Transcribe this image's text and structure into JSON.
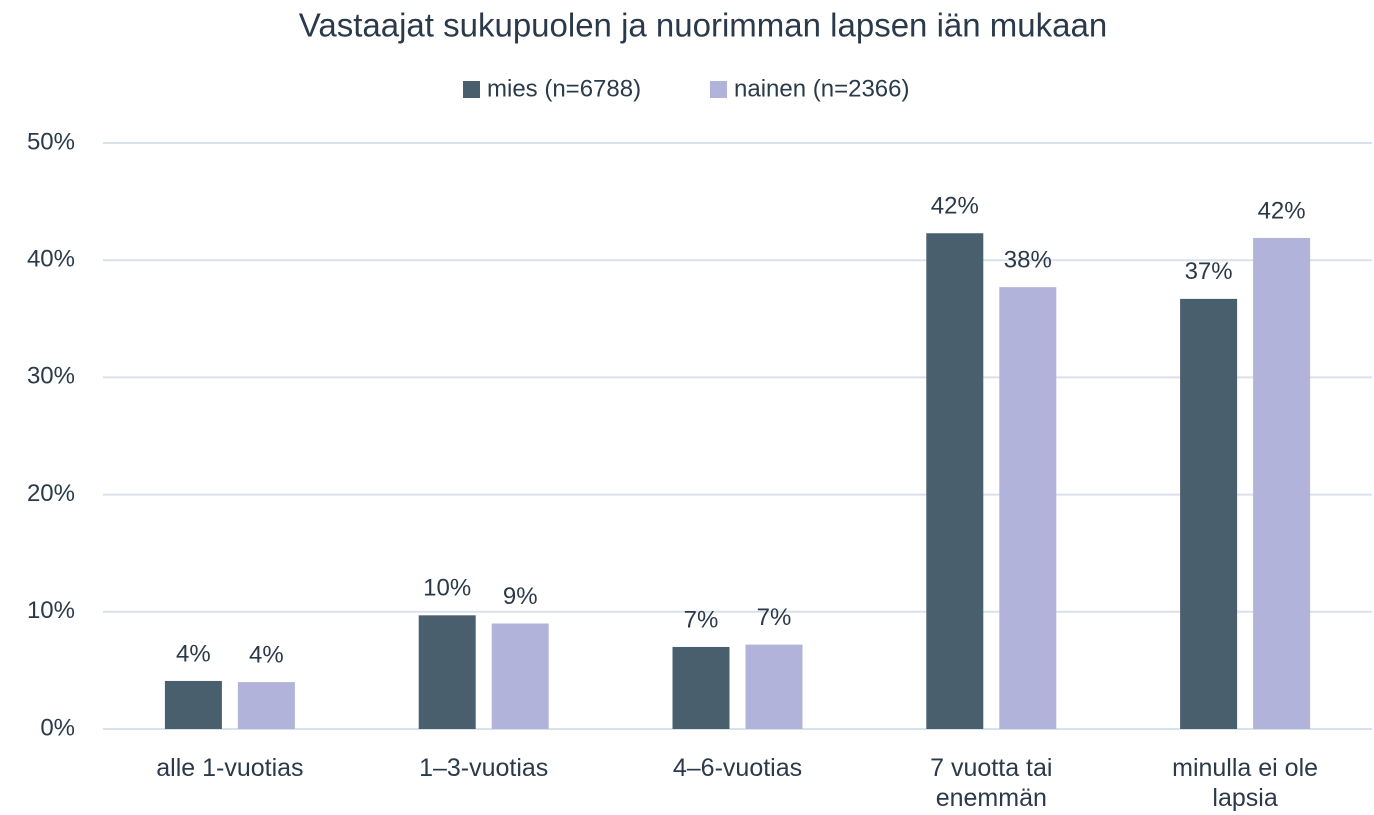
{
  "chart_data": {
    "type": "bar",
    "title": "Vastaajat sukupuolen ja nuorimman lapsen iän mukaan",
    "categories": [
      "alle 1-vuotias",
      "1–3-vuotias",
      "4–6-vuotias",
      "7 vuotta tai enemmän",
      "minulla ei ole lapsia"
    ],
    "series": [
      {
        "name": "mies (n=6788)",
        "color": "#4a5f6e",
        "values": [
          4.1,
          9.7,
          7.0,
          42.3,
          36.7
        ],
        "value_labels": [
          "4%",
          "10%",
          "7%",
          "42%",
          "37%"
        ]
      },
      {
        "name": "nainen (n=2366)",
        "color": "#b1b3db",
        "values": [
          4.0,
          9.0,
          7.2,
          37.7,
          41.9
        ],
        "value_labels": [
          "4%",
          "9%",
          "7%",
          "38%",
          "42%"
        ]
      }
    ],
    "ylim": [
      0,
      50
    ],
    "yticks": [
      {
        "value": 0,
        "label": "0%"
      },
      {
        "value": 10,
        "label": "10%"
      },
      {
        "value": 20,
        "label": "20%"
      },
      {
        "value": 30,
        "label": "30%"
      },
      {
        "value": 40,
        "label": "40%"
      },
      {
        "value": 50,
        "label": "50%"
      }
    ],
    "grid": true,
    "legend": "top"
  }
}
